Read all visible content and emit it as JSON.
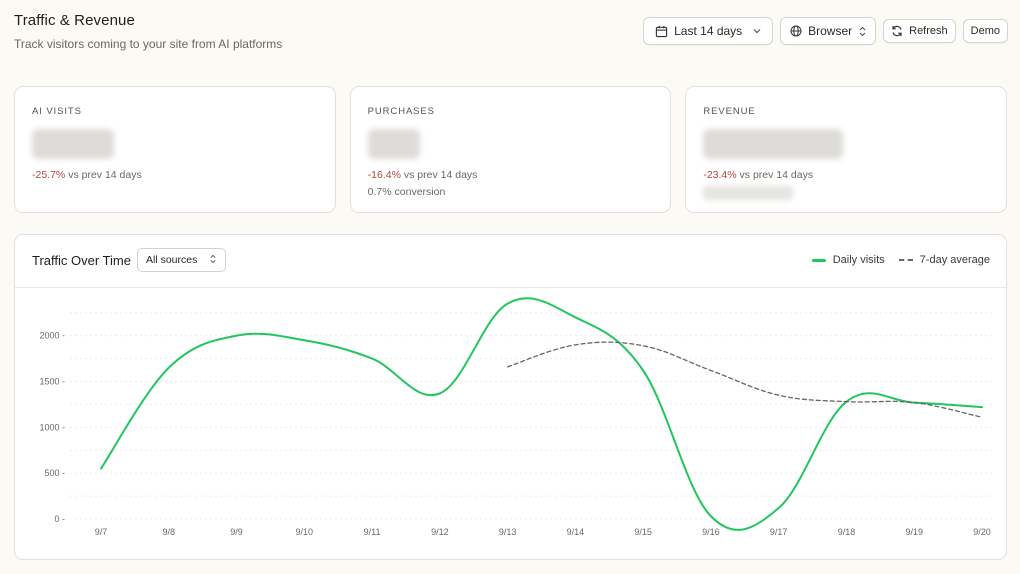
{
  "header": {
    "title": "Traffic & Revenue",
    "subtitle": "Track visitors coming to your site from AI platforms"
  },
  "toolbar": {
    "range_label": "Last 14 days",
    "browser_label": "Browser",
    "refresh_label": "Refresh",
    "demo_label": "Demo"
  },
  "cards": [
    {
      "label": "AI VISITS",
      "change": "-25.7%",
      "change_suffix": " vs prev 14 days"
    },
    {
      "label": "PURCHASES",
      "change": "-16.4%",
      "change_suffix": " vs prev 14 days",
      "extra": "0.7% conversion"
    },
    {
      "label": "REVENUE",
      "change": "-23.4%",
      "change_suffix": " vs prev 14 days"
    }
  ],
  "chart_panel": {
    "title": "Traffic Over Time",
    "source_select": "All sources",
    "legend": {
      "daily": "Daily visits",
      "avg": "7-day average"
    }
  },
  "colors": {
    "daily": "#22c55e",
    "avg": "#666666",
    "negative": "#b4453a"
  },
  "chart_data": {
    "type": "line",
    "x": [
      "9/7",
      "9/8",
      "9/9",
      "9/10",
      "9/11",
      "9/12",
      "9/13",
      "9/14",
      "9/15",
      "9/16",
      "9/17",
      "9/18",
      "9/19",
      "9/20"
    ],
    "series": [
      {
        "name": "Daily visits",
        "values": [
          550,
          1650,
          2000,
          1950,
          1750,
          1370,
          2350,
          2200,
          1620,
          30,
          120,
          1280,
          1270,
          1220
        ]
      },
      {
        "name": "7-day average",
        "values": [
          null,
          null,
          null,
          null,
          null,
          null,
          1660,
          1900,
          1890,
          1620,
          1350,
          1280,
          1270,
          1110
        ]
      }
    ],
    "yticks": [
      0,
      500,
      1000,
      1500,
      2000
    ],
    "ylim": [
      0,
      2400
    ],
    "grid": true,
    "legend": "top-right"
  }
}
